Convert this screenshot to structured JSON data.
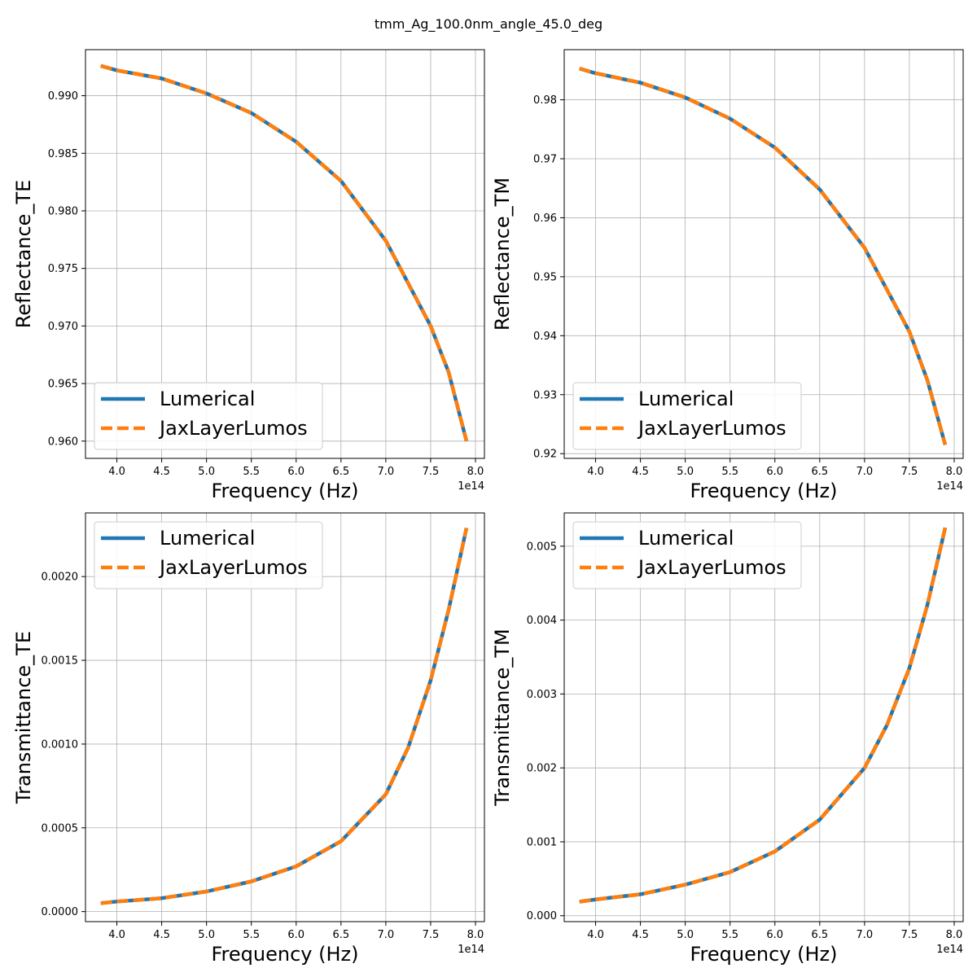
{
  "figure": {
    "title": "tmm_Ag_100.0nm_angle_45.0_deg"
  },
  "colors": {
    "lumerical": "#1f77b4",
    "jax": "#ff7f0e",
    "grid": "#b0b0b0"
  },
  "chart_data": [
    {
      "id": "reflectance-te",
      "type": "line",
      "xlabel": "Frequency (Hz)",
      "ylabel": "Reflectance_TE",
      "x_offset_label": "1e14",
      "x_unit_scale": 100000000000000.0,
      "xlim": [
        3.65,
        8.1
      ],
      "ylim": [
        0.9585,
        0.994
      ],
      "xticks": [
        4.0,
        4.5,
        5.0,
        5.5,
        6.0,
        6.5,
        7.0,
        7.5,
        8.0
      ],
      "xtick_labels": [
        "4.0",
        "4.5",
        "5.0",
        "5.5",
        "6.0",
        "6.5",
        "7.0",
        "7.5",
        "8.0"
      ],
      "yticks": [
        0.96,
        0.965,
        0.97,
        0.975,
        0.98,
        0.985,
        0.99
      ],
      "ytick_labels": [
        "0.960",
        "0.965",
        "0.970",
        "0.975",
        "0.980",
        "0.985",
        "0.990"
      ],
      "grid": true,
      "legend_position": "lower-left",
      "x": [
        3.82,
        4.0,
        4.5,
        5.0,
        5.5,
        6.0,
        6.5,
        7.0,
        7.5,
        7.7,
        7.9
      ],
      "series": [
        {
          "name": "Lumerical",
          "style": "solid",
          "values": [
            0.9926,
            0.9922,
            0.9915,
            0.9902,
            0.9885,
            0.986,
            0.9826,
            0.9774,
            0.97,
            0.966,
            0.96
          ]
        },
        {
          "name": "JaxLayerLumos",
          "style": "dashed",
          "values": [
            0.9926,
            0.9922,
            0.9915,
            0.9902,
            0.9885,
            0.986,
            0.9826,
            0.9774,
            0.97,
            0.966,
            0.96
          ]
        }
      ]
    },
    {
      "id": "reflectance-tm",
      "type": "line",
      "xlabel": "Frequency (Hz)",
      "ylabel": "Reflectance_TM",
      "x_offset_label": "1e14",
      "x_unit_scale": 100000000000000.0,
      "xlim": [
        3.65,
        8.1
      ],
      "ylim": [
        0.9192,
        0.9885
      ],
      "xticks": [
        4.0,
        4.5,
        5.0,
        5.5,
        6.0,
        6.5,
        7.0,
        7.5,
        8.0
      ],
      "xtick_labels": [
        "4.0",
        "4.5",
        "5.0",
        "5.5",
        "6.0",
        "6.5",
        "7.0",
        "7.5",
        "8.0"
      ],
      "yticks": [
        0.92,
        0.93,
        0.94,
        0.95,
        0.96,
        0.97,
        0.98
      ],
      "ytick_labels": [
        "0.92",
        "0.93",
        "0.94",
        "0.95",
        "0.96",
        "0.97",
        "0.98"
      ],
      "grid": true,
      "legend_position": "lower-left",
      "x": [
        3.82,
        4.0,
        4.5,
        5.0,
        5.5,
        6.0,
        6.5,
        7.0,
        7.5,
        7.7,
        7.9
      ],
      "series": [
        {
          "name": "Lumerical",
          "style": "solid",
          "values": [
            0.9853,
            0.9845,
            0.9829,
            0.9804,
            0.9768,
            0.9719,
            0.9648,
            0.9549,
            0.9407,
            0.9325,
            0.9215
          ]
        },
        {
          "name": "JaxLayerLumos",
          "style": "dashed",
          "values": [
            0.9853,
            0.9845,
            0.9829,
            0.9804,
            0.9768,
            0.9719,
            0.9648,
            0.9549,
            0.9407,
            0.9325,
            0.9215
          ]
        }
      ]
    },
    {
      "id": "transmittance-te",
      "type": "line",
      "xlabel": "Frequency (Hz)",
      "ylabel": "Transmittance_TE",
      "x_offset_label": "1e14",
      "x_unit_scale": 100000000000000.0,
      "xlim": [
        3.65,
        8.1
      ],
      "ylim": [
        -6e-05,
        0.00238
      ],
      "xticks": [
        4.0,
        4.5,
        5.0,
        5.5,
        6.0,
        6.5,
        7.0,
        7.5,
        8.0
      ],
      "xtick_labels": [
        "4.0",
        "4.5",
        "5.0",
        "5.5",
        "6.0",
        "6.5",
        "7.0",
        "7.5",
        "8.0"
      ],
      "yticks": [
        0.0,
        0.0005,
        0.001,
        0.0015,
        0.002
      ],
      "ytick_labels": [
        "0.0000",
        "0.0005",
        "0.0010",
        "0.0015",
        "0.0020"
      ],
      "grid": true,
      "legend_position": "upper-left",
      "x": [
        3.82,
        4.0,
        4.5,
        5.0,
        5.5,
        6.0,
        6.5,
        7.0,
        7.25,
        7.5,
        7.7,
        7.9
      ],
      "series": [
        {
          "name": "Lumerical",
          "style": "solid",
          "values": [
            5e-05,
            6e-05,
            8e-05,
            0.00012,
            0.00018,
            0.00027,
            0.00042,
            0.0007,
            0.00098,
            0.00138,
            0.0018,
            0.00229
          ]
        },
        {
          "name": "JaxLayerLumos",
          "style": "dashed",
          "values": [
            5e-05,
            6e-05,
            8e-05,
            0.00012,
            0.00018,
            0.00027,
            0.00042,
            0.0007,
            0.00098,
            0.00138,
            0.0018,
            0.00229
          ]
        }
      ]
    },
    {
      "id": "transmittance-tm",
      "type": "line",
      "xlabel": "Frequency (Hz)",
      "ylabel": "Transmittance_TM",
      "x_offset_label": "1e14",
      "x_unit_scale": 100000000000000.0,
      "xlim": [
        3.65,
        8.1
      ],
      "ylim": [
        -8e-05,
        0.00545
      ],
      "xticks": [
        4.0,
        4.5,
        5.0,
        5.5,
        6.0,
        6.5,
        7.0,
        7.5,
        8.0
      ],
      "xtick_labels": [
        "4.0",
        "4.5",
        "5.0",
        "5.5",
        "6.0",
        "6.5",
        "7.0",
        "7.5",
        "8.0"
      ],
      "yticks": [
        0.0,
        0.001,
        0.002,
        0.003,
        0.004,
        0.005
      ],
      "ytick_labels": [
        "0.000",
        "0.001",
        "0.002",
        "0.003",
        "0.004",
        "0.005"
      ],
      "grid": true,
      "legend_position": "upper-left",
      "x": [
        3.82,
        4.0,
        4.5,
        5.0,
        5.5,
        6.0,
        6.5,
        7.0,
        7.25,
        7.5,
        7.7,
        7.9
      ],
      "series": [
        {
          "name": "Lumerical",
          "style": "solid",
          "values": [
            0.00019,
            0.00022,
            0.00029,
            0.00042,
            0.00059,
            0.00087,
            0.0013,
            0.002,
            0.00258,
            0.00335,
            0.0042,
            0.00525
          ]
        },
        {
          "name": "JaxLayerLumos",
          "style": "dashed",
          "values": [
            0.00019,
            0.00022,
            0.00029,
            0.00042,
            0.00059,
            0.00087,
            0.0013,
            0.002,
            0.00258,
            0.00335,
            0.0042,
            0.00525
          ]
        }
      ]
    }
  ]
}
